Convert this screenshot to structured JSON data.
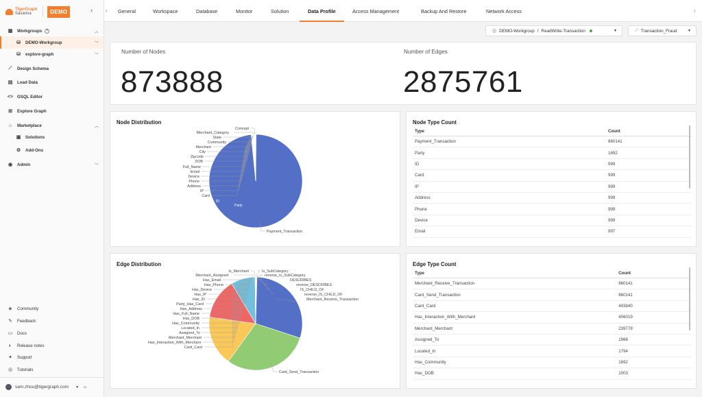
{
  "brand": {
    "logo_line1": "TigerGraph",
    "logo_line2": "Savanna",
    "badge": "DEMO"
  },
  "sidebar": {
    "workgroups_label": "Workgroups",
    "workgroup_items": [
      {
        "label": "DEMO-Workgroup",
        "icon": "database-icon"
      },
      {
        "label": "explore-graph",
        "icon": "database-icon"
      }
    ],
    "main_items": [
      "Design Schema",
      "Load Data",
      "GSQL Editor",
      "Explore Graph"
    ],
    "marketplace_label": "Marketplace",
    "marketplace_items": [
      "Solutions",
      "Add-Ons"
    ],
    "admin_label": "Admin",
    "footer_items": [
      "Community",
      "Feedback",
      "Docs",
      "Release notes",
      "Support",
      "Tutorials"
    ],
    "user_email": "sam.zhou@tigergraph.com"
  },
  "tabs": [
    "General",
    "Workspace",
    "Database",
    "Monitor",
    "Solution",
    "Data Profile",
    "Access Management",
    "Backup And Restore",
    "Network Access"
  ],
  "active_tab": "Data Profile",
  "workspace_selector": {
    "workgroup": "DEMO-Workgroup",
    "separator": "/",
    "workspace": "ReadWrite-Transaction",
    "status_color": "#3cb043"
  },
  "graph_selector": {
    "value": "Transaction_Fraud"
  },
  "stats": {
    "nodes_label": "Number of Nodes",
    "nodes_value": "873888",
    "edges_label": "Number of Edges",
    "edges_value": "2875761"
  },
  "node_distribution": {
    "title": "Node Distribution",
    "labels": [
      "Concept",
      "Merchant_Category",
      "State",
      "Community",
      "Merchant",
      "City",
      "Zipcode",
      "DOB",
      "Full_Name",
      "Email",
      "Device",
      "Phone",
      "Address",
      "IP",
      "Card",
      "Payment_Transaction"
    ],
    "inner_labels": [
      "ID",
      "Party"
    ]
  },
  "edge_distribution": {
    "title": "Edge Distribution",
    "left_labels": [
      "Is_Merchant",
      "Merchant_Assigned",
      "Has_Email",
      "Has_Phone",
      "Has_Device",
      "Has_IP",
      "Has_ID",
      "Party_Has_Card",
      "Has_Address",
      "Has_Full_Name",
      "Has_DOB",
      "Has_Community",
      "Located_In",
      "Assigned_To",
      "Merchant_Merchant",
      "Has_Interaction_With_Merchant",
      "Card_Card"
    ],
    "right_labels": [
      "Is_SubCategory",
      "reverse_Is_SubCategory",
      "DESCRIBES",
      "reverse_DESCRIBES",
      "IS_CHILD_OF",
      "reverse_IS_CHILD_OF",
      "Merchant_Receive_Transaction"
    ],
    "bottom_label": "Card_Send_Transaction"
  },
  "node_type_count": {
    "title": "Node Type Count",
    "headers": [
      "Type",
      "Count"
    ],
    "rows": [
      [
        "Payment_Transaction",
        "860141"
      ],
      [
        "Party",
        "1692"
      ],
      [
        "ID",
        "999"
      ],
      [
        "Card",
        "999"
      ],
      [
        "IP",
        "999"
      ],
      [
        "Address",
        "999"
      ],
      [
        "Phone",
        "999"
      ],
      [
        "Device",
        "999"
      ],
      [
        "Email",
        "997"
      ]
    ]
  },
  "edge_type_count": {
    "title": "Edge Type Count",
    "headers": [
      "Type",
      "Count"
    ],
    "rows": [
      [
        "Merchant_Receive_Transaction",
        "860141"
      ],
      [
        "Card_Send_Transaction",
        "860141"
      ],
      [
        "Card_Card",
        "493840"
      ],
      [
        "Has_Interaction_With_Merchant",
        "406019"
      ],
      [
        "Merchant_Merchant",
        "239778"
      ],
      [
        "Assigned_To",
        "1966"
      ],
      [
        "Located_In",
        "1794"
      ],
      [
        "Has_Community",
        "1692"
      ],
      [
        "Has_DOB",
        "1003"
      ]
    ]
  },
  "chart_data": [
    {
      "type": "pie",
      "title": "Node Distribution",
      "series": [
        {
          "values": [
            860141,
            1692,
            999,
            999,
            999,
            999,
            999,
            999,
            997,
            1000,
            1000,
            1000,
            1000,
            1000,
            80,
            30
          ]
        }
      ],
      "categories": [
        "Payment_Transaction",
        "Party",
        "ID",
        "Card",
        "IP",
        "Address",
        "Phone",
        "Device",
        "Email",
        "Full_Name",
        "DOB",
        "Zipcode",
        "City",
        "Merchant",
        "Community",
        "State"
      ],
      "colors": [
        "#5470c6",
        "#91cc75",
        "#fac858",
        "#ee6666",
        "#73c0de"
      ]
    },
    {
      "type": "pie",
      "title": "Edge Distribution",
      "categories": [
        "Merchant_Receive_Transaction",
        "Card_Send_Transaction",
        "Card_Card",
        "Has_Interaction_With_Merchant",
        "Merchant_Merchant",
        "Assigned_To",
        "Located_In",
        "Has_Community",
        "Has_DOB"
      ],
      "series": [
        {
          "values": [
            860141,
            860141,
            493840,
            406019,
            239778,
            1966,
            1794,
            1692,
            1003
          ]
        }
      ],
      "colors": [
        "#5470c6",
        "#91cc75",
        "#fac858",
        "#ee6666",
        "#73c0de",
        "#3ba272",
        "#fc8452",
        "#9a60b4",
        "#ea7ccc"
      ]
    }
  ]
}
